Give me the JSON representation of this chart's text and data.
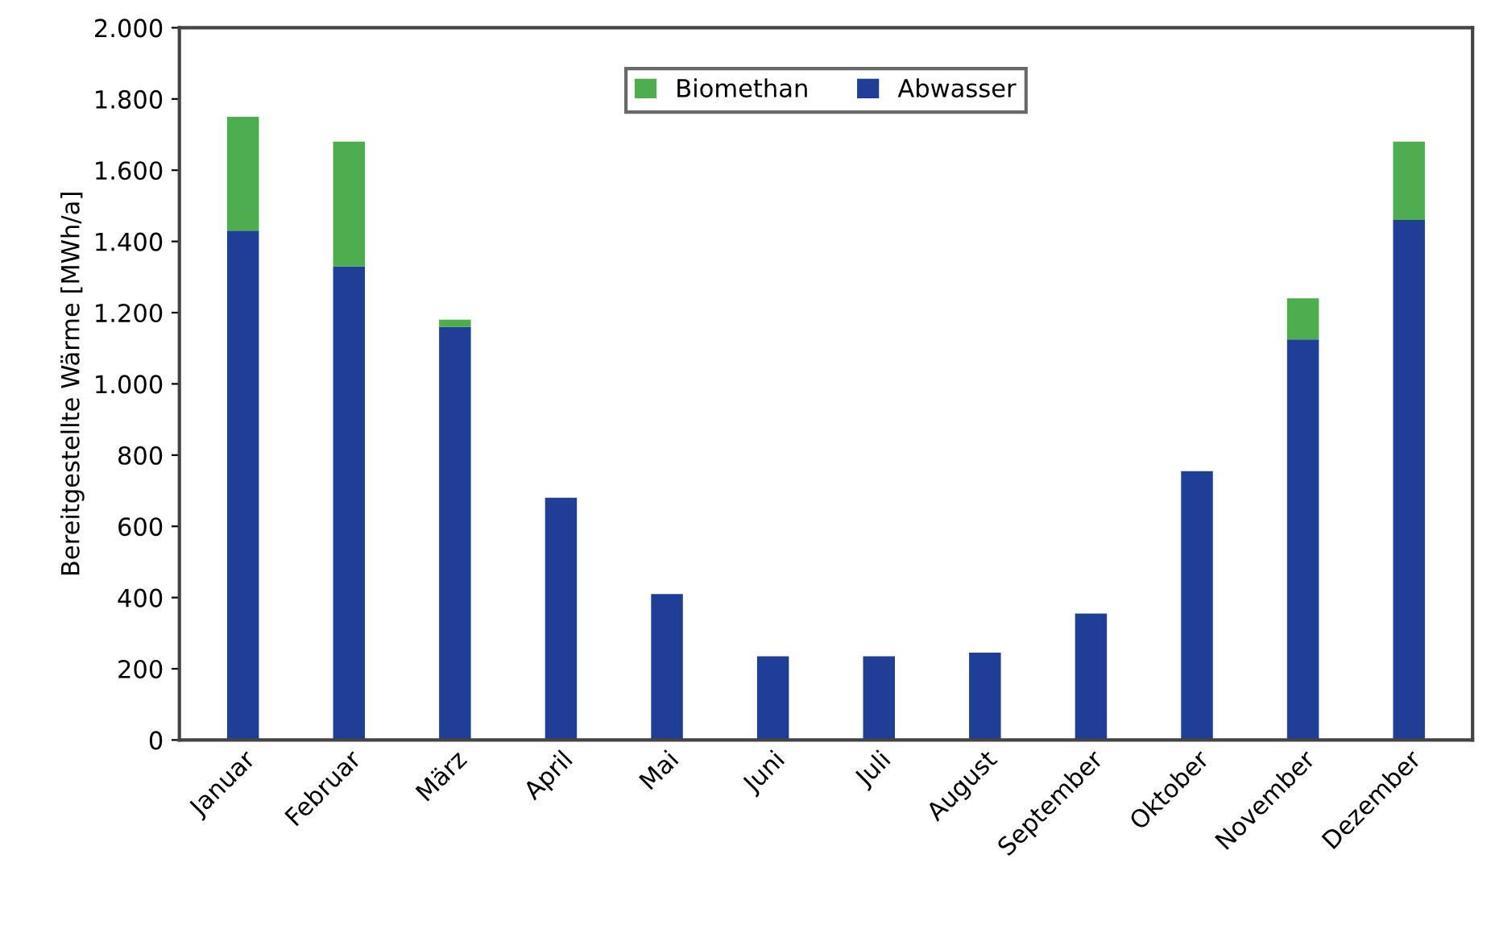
{
  "chart_data": {
    "type": "bar",
    "stacked": true,
    "ylabel": "Bereitgestellte Wärme [MWh/a]",
    "categories": [
      "Januar",
      "Februar",
      "März",
      "April",
      "Mai",
      "Juni",
      "Juli",
      "August",
      "September",
      "Oktober",
      "November",
      "Dezember"
    ],
    "series": [
      {
        "name": "Abwasser",
        "color": "#1f3f96",
        "values": [
          1430,
          1330,
          1160,
          680,
          410,
          235,
          235,
          245,
          355,
          755,
          1125,
          1460
        ]
      },
      {
        "name": "Biomethan",
        "color": "#4cae4c",
        "values": [
          320,
          350,
          20,
          null,
          null,
          null,
          null,
          null,
          null,
          null,
          115,
          220
        ]
      }
    ],
    "ylim": [
      0,
      2000
    ],
    "yticks": [
      0,
      200,
      400,
      600,
      800,
      {
        "value": 1000,
        "label": "1.000"
      },
      {
        "value": 1200,
        "label": "1.200"
      },
      {
        "value": 1400,
        "label": "1.400"
      },
      {
        "value": 1600,
        "label": "1.600"
      },
      {
        "value": 1800,
        "label": "1.800"
      },
      {
        "value": 2000,
        "label": "2.000"
      }
    ],
    "grid": false,
    "legend": "top"
  }
}
